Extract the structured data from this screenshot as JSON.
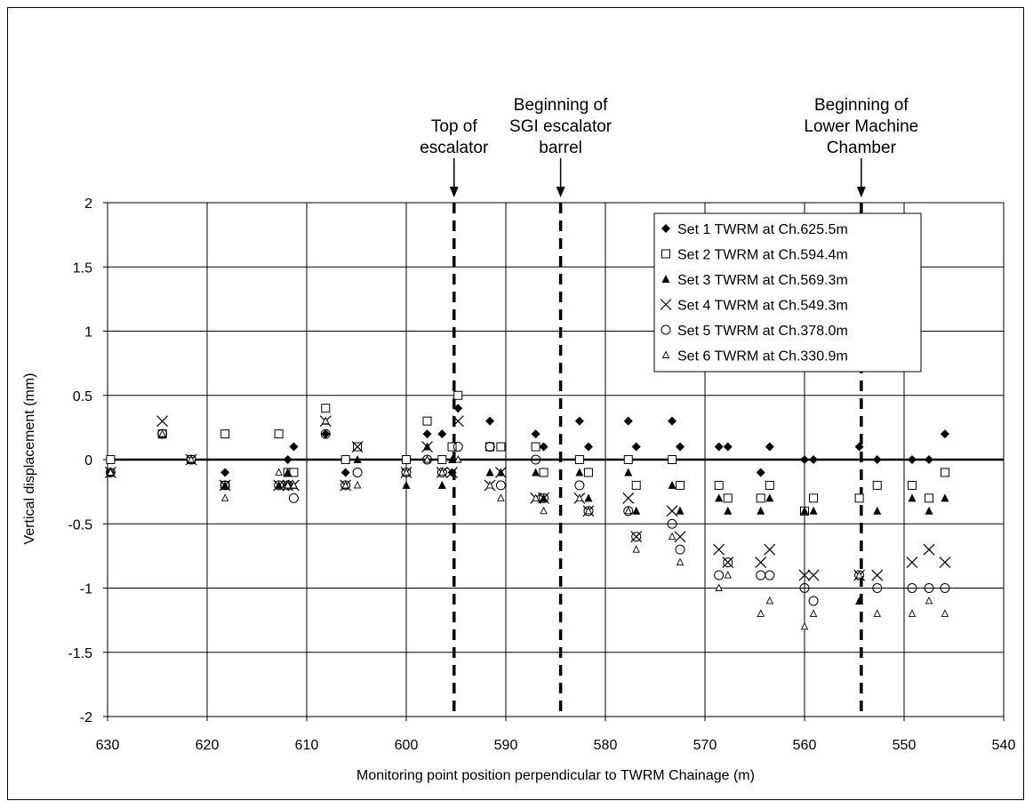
{
  "chart_data": {
    "type": "scatter",
    "xlabel": "Monitoring point position perpendicular to TWRM Chainage (m)",
    "ylabel": "Vertical displacement (mm)",
    "xlim": [
      630,
      540
    ],
    "ylim": [
      -2,
      2
    ],
    "x_ticks": [
      "630",
      "620",
      "610",
      "600",
      "590",
      "580",
      "570",
      "560",
      "550",
      "540"
    ],
    "y_ticks": [
      "2",
      "1.5",
      "1",
      "0.5",
      "0",
      "-0.5",
      "-1",
      "-1.5",
      "-2"
    ],
    "grid": true,
    "legend_position": "top-right",
    "annotations": [
      {
        "x": 595.2,
        "lines": [
          "Top of",
          "escalator"
        ]
      },
      {
        "x": 584.5,
        "lines": [
          "Beginning of",
          "SGI escalator",
          "barrel"
        ]
      },
      {
        "x": 554.3,
        "lines": [
          "Beginning of",
          "Lower Machine",
          "Chamber"
        ]
      }
    ],
    "series": [
      {
        "name": "Set 1 TWRM at Ch.625.5m",
        "marker": "diamond-filled",
        "points": [
          [
            629.7,
            -0.1
          ],
          [
            624.5,
            0.2
          ],
          [
            621.6,
            0
          ],
          [
            618.2,
            0.2
          ],
          [
            618.2,
            -0.1
          ],
          [
            618.2,
            -0.2
          ],
          [
            612.8,
            0.2
          ],
          [
            611.9,
            0
          ],
          [
            611.3,
            0.1
          ],
          [
            611.9,
            -0.2
          ],
          [
            606.1,
            -0.1
          ],
          [
            608.1,
            0.2
          ],
          [
            604.9,
            0.1
          ],
          [
            600.0,
            0
          ],
          [
            597.9,
            0.2
          ],
          [
            596.4,
            0.2
          ],
          [
            594.8,
            0.4
          ],
          [
            595.4,
            0.1
          ],
          [
            595.4,
            -0.1
          ],
          [
            591.6,
            0.3
          ],
          [
            590.5,
            0.1
          ],
          [
            587.0,
            0.2
          ],
          [
            586.2,
            0.1
          ],
          [
            582.6,
            0.3
          ],
          [
            581.7,
            0.1
          ],
          [
            577.7,
            0.3
          ],
          [
            576.9,
            0.1
          ],
          [
            573.3,
            0.3
          ],
          [
            572.5,
            0.1
          ],
          [
            568.6,
            0.1
          ],
          [
            567.7,
            0.1
          ],
          [
            563.5,
            0.1
          ],
          [
            564.4,
            -0.1
          ],
          [
            560.0,
            0
          ],
          [
            559.1,
            0
          ],
          [
            554.5,
            0.1
          ],
          [
            552.7,
            0
          ],
          [
            549.2,
            0
          ],
          [
            547.5,
            0
          ],
          [
            545.9,
            0.2
          ]
        ]
      },
      {
        "name": "Set 2 TWRM at Ch.594.4m",
        "marker": "square-open",
        "points": [
          [
            629.7,
            0
          ],
          [
            624.5,
            0.2
          ],
          [
            621.6,
            0
          ],
          [
            618.2,
            0.2
          ],
          [
            618.2,
            -0.2
          ],
          [
            612.8,
            0.2
          ],
          [
            611.9,
            -0.1
          ],
          [
            611.3,
            -0.1
          ],
          [
            608.1,
            0.4
          ],
          [
            606.1,
            0
          ],
          [
            604.9,
            0.1
          ],
          [
            600.0,
            0
          ],
          [
            597.9,
            0.3
          ],
          [
            596.4,
            0
          ],
          [
            594.8,
            0.5
          ],
          [
            595.4,
            0.1
          ],
          [
            591.6,
            0.1
          ],
          [
            590.5,
            0.1
          ],
          [
            587.0,
            0.1
          ],
          [
            586.2,
            -0.1
          ],
          [
            582.6,
            0
          ],
          [
            581.7,
            -0.1
          ],
          [
            577.7,
            0
          ],
          [
            576.9,
            -0.2
          ],
          [
            573.3,
            0
          ],
          [
            572.5,
            -0.2
          ],
          [
            568.6,
            -0.2
          ],
          [
            567.7,
            -0.3
          ],
          [
            564.4,
            -0.3
          ],
          [
            563.5,
            -0.2
          ],
          [
            560.0,
            -0.4
          ],
          [
            559.1,
            -0.3
          ],
          [
            554.5,
            -0.3
          ],
          [
            552.7,
            -0.2
          ],
          [
            549.2,
            -0.2
          ],
          [
            547.5,
            -0.3
          ],
          [
            545.9,
            -0.1
          ]
        ]
      },
      {
        "name": "Set 3 TWRM at Ch.569.3m",
        "marker": "triangle-filled",
        "points": [
          [
            629.7,
            -0.1
          ],
          [
            624.5,
            0.2
          ],
          [
            621.6,
            0
          ],
          [
            618.2,
            -0.2
          ],
          [
            612.8,
            -0.2
          ],
          [
            611.9,
            -0.1
          ],
          [
            611.3,
            -0.2
          ],
          [
            608.1,
            0.3
          ],
          [
            606.1,
            -0.2
          ],
          [
            604.9,
            0
          ],
          [
            600.0,
            -0.2
          ],
          [
            597.9,
            0.1
          ],
          [
            596.4,
            -0.2
          ],
          [
            595.4,
            0
          ],
          [
            591.6,
            -0.1
          ],
          [
            590.5,
            -0.1
          ],
          [
            587.0,
            -0.1
          ],
          [
            586.2,
            -0.3
          ],
          [
            582.6,
            -0.1
          ],
          [
            581.7,
            -0.3
          ],
          [
            577.7,
            -0.1
          ],
          [
            576.9,
            -0.4
          ],
          [
            573.3,
            -0.2
          ],
          [
            572.5,
            -0.4
          ],
          [
            568.6,
            -0.3
          ],
          [
            567.7,
            -0.4
          ],
          [
            564.4,
            -0.4
          ],
          [
            563.5,
            -0.3
          ],
          [
            560.0,
            -0.4
          ],
          [
            559.1,
            -0.4
          ],
          [
            554.5,
            -1.1
          ],
          [
            552.7,
            -0.4
          ],
          [
            549.2,
            -0.3
          ],
          [
            547.5,
            -0.4
          ],
          [
            545.9,
            -0.3
          ]
        ]
      },
      {
        "name": "Set 4 TWRM at Ch.549.3m",
        "marker": "x",
        "points": [
          [
            629.7,
            -0.1
          ],
          [
            624.5,
            0.3
          ],
          [
            621.6,
            0
          ],
          [
            618.2,
            -0.2
          ],
          [
            612.8,
            -0.2
          ],
          [
            611.9,
            -0.2
          ],
          [
            611.3,
            -0.2
          ],
          [
            608.1,
            0.3
          ],
          [
            606.1,
            -0.2
          ],
          [
            604.9,
            0.1
          ],
          [
            600.0,
            -0.1
          ],
          [
            597.9,
            0.1
          ],
          [
            596.4,
            -0.1
          ],
          [
            595.4,
            -0.1
          ],
          [
            594.8,
            0.3
          ],
          [
            591.6,
            -0.2
          ],
          [
            590.5,
            -0.1
          ],
          [
            587.0,
            -0.3
          ],
          [
            586.2,
            -0.3
          ],
          [
            582.6,
            -0.3
          ],
          [
            581.7,
            -0.4
          ],
          [
            577.7,
            -0.3
          ],
          [
            576.9,
            -0.6
          ],
          [
            573.3,
            -0.4
          ],
          [
            572.5,
            -0.6
          ],
          [
            568.6,
            -0.7
          ],
          [
            567.7,
            -0.8
          ],
          [
            564.4,
            -0.8
          ],
          [
            563.5,
            -0.7
          ],
          [
            560.0,
            -0.9
          ],
          [
            559.1,
            -0.9
          ],
          [
            554.5,
            -0.9
          ],
          [
            552.7,
            -0.9
          ],
          [
            549.2,
            -0.8
          ],
          [
            547.5,
            -0.7
          ],
          [
            545.9,
            -0.8
          ]
        ]
      },
      {
        "name": "Set 5 TWRM at Ch.378.0m",
        "marker": "circle-open",
        "points": [
          [
            629.7,
            -0.1
          ],
          [
            624.5,
            0.2
          ],
          [
            621.6,
            0
          ],
          [
            618.2,
            -0.2
          ],
          [
            612.8,
            -0.2
          ],
          [
            611.9,
            -0.2
          ],
          [
            611.3,
            -0.3
          ],
          [
            608.1,
            0.2
          ],
          [
            606.1,
            -0.2
          ],
          [
            604.9,
            -0.1
          ],
          [
            600.0,
            -0.1
          ],
          [
            597.9,
            0
          ],
          [
            596.4,
            -0.1
          ],
          [
            594.8,
            0.1
          ],
          [
            591.6,
            0.1
          ],
          [
            590.5,
            -0.2
          ],
          [
            587.0,
            0
          ],
          [
            586.2,
            -0.3
          ],
          [
            582.6,
            -0.2
          ],
          [
            581.7,
            -0.4
          ],
          [
            577.7,
            -0.4
          ],
          [
            576.9,
            -0.6
          ],
          [
            573.3,
            -0.5
          ],
          [
            572.5,
            -0.7
          ],
          [
            568.6,
            -0.9
          ],
          [
            567.7,
            -0.8
          ],
          [
            564.4,
            -0.9
          ],
          [
            563.5,
            -0.9
          ],
          [
            560.0,
            -1.0
          ],
          [
            559.1,
            -1.1
          ],
          [
            554.5,
            -0.9
          ],
          [
            552.7,
            -1.0
          ],
          [
            549.2,
            -1.0
          ],
          [
            547.5,
            -1.0
          ],
          [
            545.9,
            -1.0
          ]
        ]
      },
      {
        "name": "Set 6 TWRM at Ch.330.9m",
        "marker": "triangle-open",
        "points": [
          [
            629.7,
            -0.1
          ],
          [
            624.5,
            0.2
          ],
          [
            621.6,
            0
          ],
          [
            618.2,
            -0.3
          ],
          [
            612.8,
            -0.1
          ],
          [
            611.9,
            -0.2
          ],
          [
            611.3,
            -0.2
          ],
          [
            608.1,
            0.3
          ],
          [
            606.1,
            -0.2
          ],
          [
            604.9,
            -0.2
          ],
          [
            600.0,
            -0.1
          ],
          [
            597.9,
            0
          ],
          [
            596.4,
            -0.1
          ],
          [
            594.8,
            0
          ],
          [
            591.6,
            -0.2
          ],
          [
            590.5,
            -0.3
          ],
          [
            587.0,
            -0.3
          ],
          [
            586.2,
            -0.4
          ],
          [
            582.6,
            -0.3
          ],
          [
            581.7,
            -0.4
          ],
          [
            577.7,
            -0.4
          ],
          [
            576.9,
            -0.7
          ],
          [
            573.3,
            -0.6
          ],
          [
            572.5,
            -0.8
          ],
          [
            568.6,
            -1.0
          ],
          [
            567.7,
            -0.9
          ],
          [
            564.4,
            -1.2
          ],
          [
            563.5,
            -1.1
          ],
          [
            560.0,
            -1.3
          ],
          [
            559.1,
            -1.2
          ],
          [
            554.5,
            -0.9
          ],
          [
            552.7,
            -1.2
          ],
          [
            549.2,
            -1.2
          ],
          [
            547.5,
            -1.1
          ],
          [
            545.9,
            -1.2
          ]
        ]
      }
    ]
  }
}
